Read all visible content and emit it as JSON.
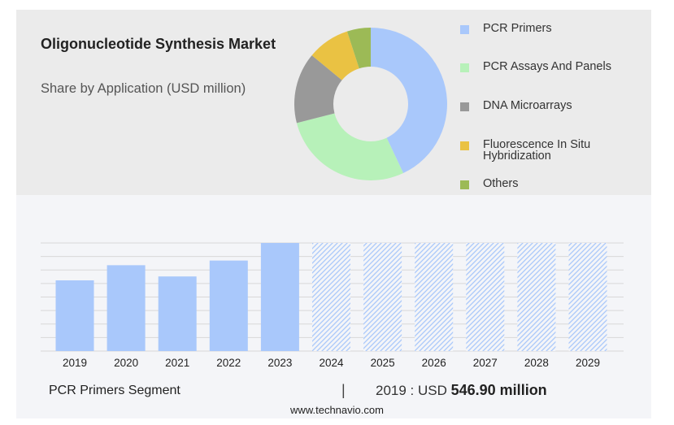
{
  "header": {
    "title": "Oligonucleotide Synthesis Market",
    "subtitle": "Share by Application (USD million)"
  },
  "legend": [
    {
      "label": "PCR Primers",
      "color": "#a9c8fb"
    },
    {
      "label": "PCR Assays And Panels",
      "color": "#b7f1b9"
    },
    {
      "label": "DNA Microarrays",
      "color": "#999999"
    },
    {
      "label": "Fluorescence In Situ Hybridization",
      "color": "#eac243"
    },
    {
      "label": "Others",
      "color": "#9cba56"
    }
  ],
  "footer": {
    "segment": "PCR Primers Segment",
    "separator": "|",
    "year_text": "2019 : USD",
    "value_text": "546.90 million"
  },
  "source": "www.technavio.com",
  "chart_data": [
    {
      "type": "pie",
      "donut": true,
      "categories": [
        "PCR Primers",
        "PCR Assays And Panels",
        "DNA Microarrays",
        "Fluorescence In Situ Hybridization",
        "Others"
      ],
      "values": [
        43,
        28,
        15,
        9,
        5
      ],
      "colors": [
        "#a9c8fb",
        "#b7f1b9",
        "#999999",
        "#eac243",
        "#9cba56"
      ],
      "title": "",
      "legend": "right"
    },
    {
      "type": "bar",
      "categories": [
        "2019",
        "2020",
        "2021",
        "2022",
        "2023",
        "2024",
        "2025",
        "2026",
        "2027",
        "2028",
        "2029"
      ],
      "values": [
        546.9,
        664,
        577,
        700,
        836,
        836,
        836,
        836,
        836,
        836,
        836
      ],
      "forecast_from": "2024",
      "ylim": [
        0,
        836
      ],
      "grid": true,
      "bar_color": "#a9c8fb",
      "title": "",
      "xlabel": "",
      "ylabel": ""
    }
  ]
}
